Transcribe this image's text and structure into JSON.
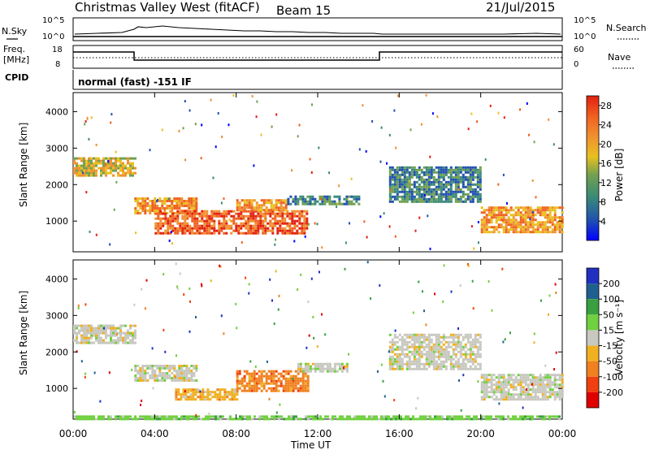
{
  "header": {
    "station": "Christmas Valley West (fitACF)",
    "beam": "Beam 15",
    "date": "21/Jul/2015"
  },
  "noise_panel": {
    "left_label": "N.Sky",
    "right_label": "N.Search",
    "left_ticks": [
      "10^5",
      "10^0"
    ],
    "right_ticks": [
      "10^5",
      "10^0"
    ]
  },
  "freq_panel": {
    "left_label_1": "Freq.",
    "left_label_2": "[MHz]",
    "right_label": "Nave",
    "left_ticks": [
      "18",
      "8"
    ],
    "right_ticks": [
      "60",
      "0"
    ]
  },
  "cpid": {
    "label": "CPID",
    "text": "normal (fast) -151 IF"
  },
  "power_panel": {
    "ylabel": "Slant Range [km]",
    "y_ticks": [
      "4000",
      "3000",
      "2000",
      "1000"
    ],
    "colorbar_label": "Power [dB]",
    "colorbar_ticks": [
      "28",
      "24",
      "20",
      "16",
      "12",
      "8",
      "4"
    ]
  },
  "velocity_panel": {
    "ylabel": "Slant Range [km]",
    "y_ticks": [
      "4000",
      "3000",
      "2000",
      "1000"
    ],
    "colorbar_label": "Velocity [m s⁻¹]",
    "colorbar_ticks": [
      "200",
      "100",
      "50",
      "15",
      "-15",
      "-50",
      "-100",
      "-200"
    ]
  },
  "x_axis": {
    "label": "Time UT",
    "ticks": [
      "00:00",
      "04:00",
      "08:00",
      "12:00",
      "16:00",
      "20:00",
      "00:00"
    ]
  },
  "colors": {
    "power_scale": [
      "#0000ff",
      "#2050b0",
      "#3a8a78",
      "#70a050",
      "#e8c020",
      "#f09030",
      "#f06020",
      "#e02010"
    ],
    "velocity_scale": [
      "#2030c0",
      "#206090",
      "#38a040",
      "#70d040",
      "#c8c8c0",
      "#f0b020",
      "#f08020",
      "#f04010",
      "#e00000"
    ]
  },
  "chart_data": [
    {
      "type": "heatmap",
      "title": "Christmas Valley West (fitACF) Beam 15",
      "xlabel": "Time UT",
      "ylabel": "Slant Range [km]",
      "xlim": [
        0,
        24
      ],
      "ylim": [
        180,
        4500
      ],
      "colorbar": {
        "label": "Power [dB]",
        "range": [
          0,
          30
        ],
        "ticks": [
          4,
          8,
          12,
          16,
          20,
          24,
          28
        ]
      },
      "echo_regions": [
        {
          "t_start": 0.0,
          "t_end": 3.0,
          "range_low": 2250,
          "range_high": 2750,
          "power_dB": 18
        },
        {
          "t_start": 3.0,
          "t_end": 6.0,
          "range_low": 1200,
          "range_high": 1650,
          "power_dB": 20
        },
        {
          "t_start": 4.0,
          "t_end": 11.5,
          "range_low": 650,
          "range_high": 1300,
          "power_dB": 24
        },
        {
          "t_start": 8.0,
          "t_end": 10.5,
          "range_low": 1300,
          "range_high": 1600,
          "power_dB": 20
        },
        {
          "t_start": 10.5,
          "t_end": 14.0,
          "range_low": 1450,
          "range_high": 1700,
          "power_dB": 10
        },
        {
          "t_start": 15.5,
          "t_end": 20.0,
          "range_low": 1500,
          "range_high": 2500,
          "power_dB": 8
        },
        {
          "t_start": 20.0,
          "t_end": 24.0,
          "range_low": 700,
          "range_high": 1400,
          "power_dB": 20
        }
      ]
    },
    {
      "type": "heatmap",
      "title": "Christmas Valley West (fitACF) Beam 15",
      "xlabel": "Time UT",
      "ylabel": "Slant Range [km]",
      "xlim": [
        0,
        24
      ],
      "ylim": [
        180,
        4500
      ],
      "colorbar": {
        "label": "Velocity [m s⁻¹]",
        "range": [
          -250,
          250
        ],
        "ticks": [
          200,
          100,
          50,
          15,
          -15,
          -50,
          -100,
          -200
        ]
      },
      "echo_regions": [
        {
          "t_start": 0.0,
          "t_end": 3.0,
          "range_low": 2250,
          "range_high": 2750,
          "velocity": 0
        },
        {
          "t_start": 3.0,
          "t_end": 6.0,
          "range_low": 1200,
          "range_high": 1650,
          "velocity": 0
        },
        {
          "t_start": 5.0,
          "t_end": 8.0,
          "range_low": 700,
          "range_high": 1000,
          "velocity": -40
        },
        {
          "t_start": 8.0,
          "t_end": 11.5,
          "range_low": 900,
          "range_high": 1500,
          "velocity": -80
        },
        {
          "t_start": 11.0,
          "t_end": 13.5,
          "range_low": 1450,
          "range_high": 1700,
          "velocity": 0
        },
        {
          "t_start": 15.5,
          "t_end": 20.0,
          "range_low": 1500,
          "range_high": 2500,
          "velocity": 0
        },
        {
          "t_start": 20.0,
          "t_end": 24.0,
          "range_low": 700,
          "range_high": 1400,
          "velocity": 0
        },
        {
          "t_start": 0.0,
          "t_end": 24.0,
          "range_low": 180,
          "range_high": 260,
          "velocity": 60
        }
      ]
    }
  ]
}
